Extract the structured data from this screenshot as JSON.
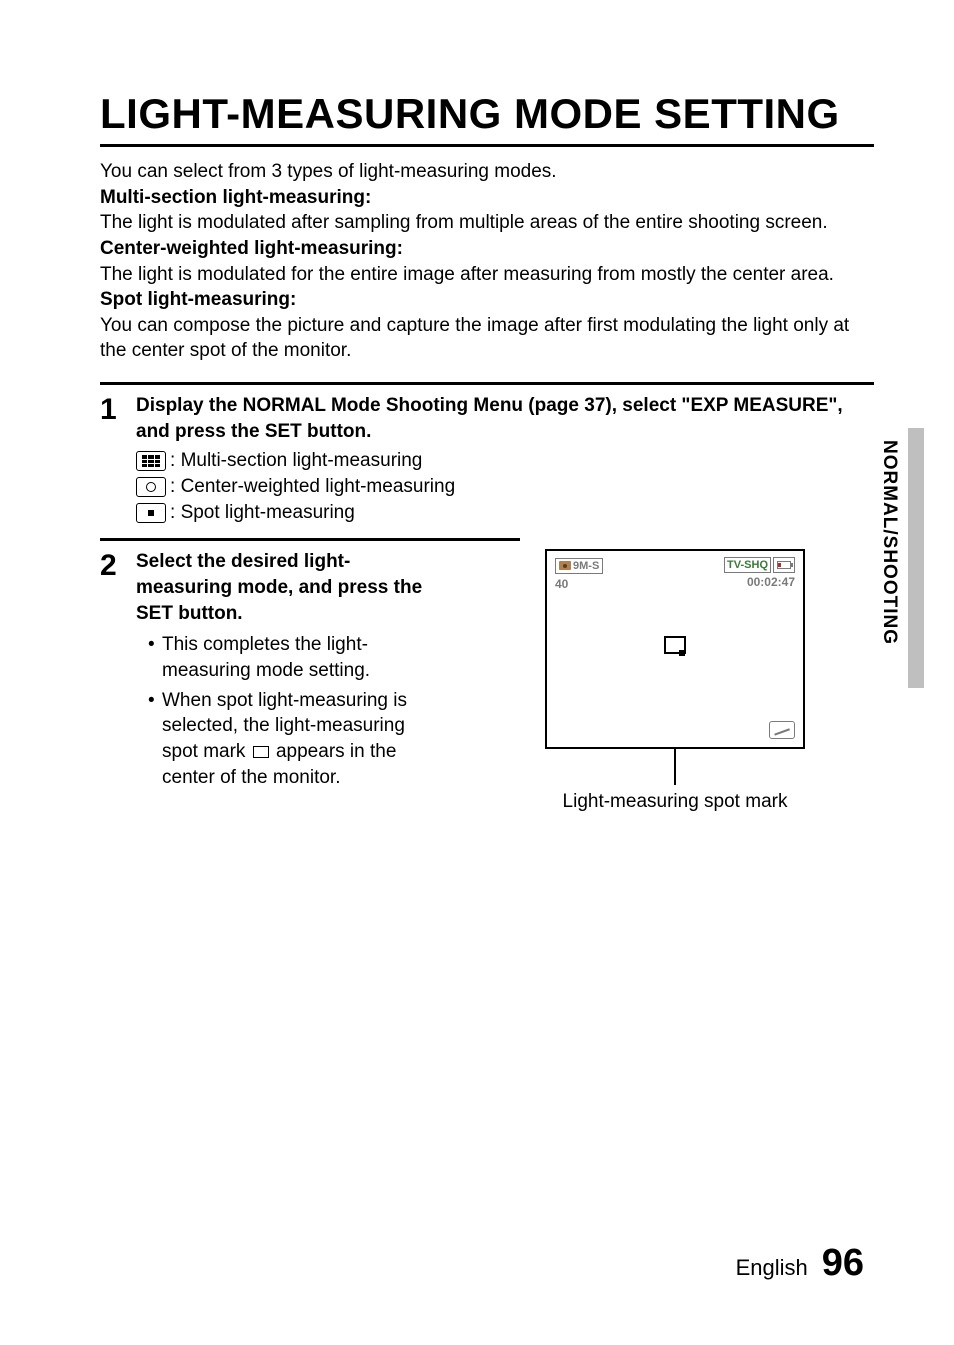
{
  "title": "LIGHT-MEASURING MODE SETTING",
  "intro": {
    "lead": "You can select from 3 types of light-measuring modes.",
    "modes": [
      {
        "name": "Multi-section light-measuring:",
        "desc": "The light is modulated after sampling from multiple areas of the entire shooting screen."
      },
      {
        "name": "Center-weighted light-measuring:",
        "desc": "The light is modulated for the entire image after measuring from mostly the center area."
      },
      {
        "name": "Spot light-measuring:",
        "desc": "You can compose the picture and capture the image after first modulating the light only at the center spot of the monitor."
      }
    ]
  },
  "step1": {
    "num": "1",
    "head": "Display the NORMAL Mode Shooting Menu (page 37), select \"EXP MEASURE\", and press the SET button.",
    "icons": [
      {
        "label": "Multi-section light-measuring"
      },
      {
        "label": "Center-weighted light-measuring"
      },
      {
        "label": "Spot light-measuring"
      }
    ]
  },
  "step2": {
    "num": "2",
    "head": "Select the desired light-measuring mode, and press the SET button.",
    "bullets": [
      "This completes the light-measuring mode setting.",
      {
        "pre": "When spot light-measuring is selected, the light-measuring spot mark ",
        "post": " appears in the center of the monitor."
      }
    ]
  },
  "monitor": {
    "res": "9M-S",
    "count": "40",
    "mode": "TV-SHQ",
    "time": "00:02:47",
    "callout": "Light-measuring spot mark"
  },
  "side_label": "NORMAL/SHOOTING",
  "footer": {
    "lang": "English",
    "page": "96"
  }
}
